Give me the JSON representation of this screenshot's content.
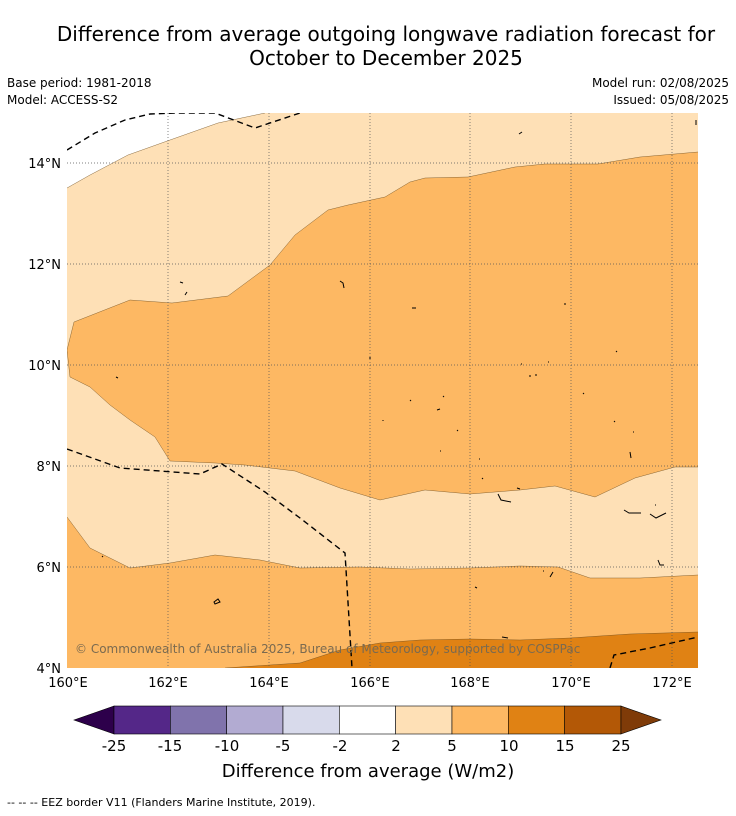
{
  "header": {
    "title_line1": "Difference from average outgoing longwave radiation forecast for",
    "title_line2": "October to December 2025",
    "base_period": "Base period: 1981-2018",
    "model": "Model: ACCESS-S2",
    "model_run": "Model run: 02/08/2025",
    "issued": "Issued: 05/08/2025"
  },
  "map": {
    "lon_labels": [
      "160°E",
      "162°E",
      "164°E",
      "166°E",
      "168°E",
      "170°E",
      "172°E"
    ],
    "lat_labels": [
      "14°N",
      "12°N",
      "10°N",
      "8°N",
      "6°N",
      "4°N"
    ],
    "copyright": "© Commonwealth of Australia 2025, Bureau of Meteorology, supported by COSPPac"
  },
  "legend": {
    "title": "Difference from average (W/m2)",
    "tick_labels": [
      "-25",
      "-15",
      "-10",
      "-5",
      "-2",
      "2",
      "5",
      "10",
      "15",
      "25"
    ],
    "colors": [
      "#2d004b",
      "#542788",
      "#8073ac",
      "#b2abd2",
      "#d8daeb",
      "#ffffff",
      "#fee0b6",
      "#fdb863",
      "#e08214",
      "#b35806",
      "#7f3b08"
    ]
  },
  "footer": {
    "eez_note": "--  --  -- EEZ border V11 (Flanders Marine Institute, 2019)."
  }
}
